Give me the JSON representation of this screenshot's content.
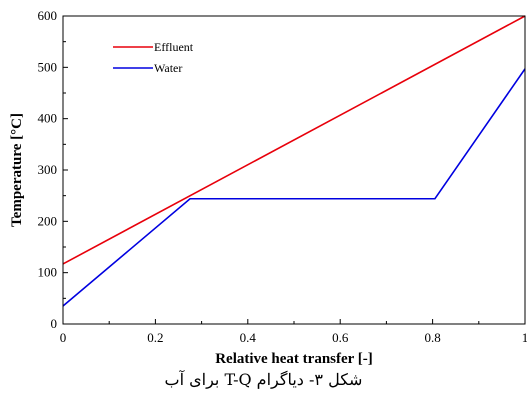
{
  "chart_data": {
    "type": "line",
    "xlabel": "Relative heat transfer [-]",
    "ylabel": "Temperature [°C]",
    "xlim": [
      0,
      1
    ],
    "ylim": [
      0,
      600
    ],
    "xticks": [
      0,
      0.2,
      0.4,
      0.6,
      0.8,
      1
    ],
    "xtick_labels": [
      "0",
      "0.2",
      "0.4",
      "0.6",
      "0.8",
      "1"
    ],
    "yticks": [
      0,
      100,
      200,
      300,
      400,
      500,
      600
    ],
    "ytick_labels": [
      "0",
      "100",
      "200",
      "300",
      "400",
      "500",
      "600"
    ],
    "grid": false,
    "legend_position": "top-left",
    "series": [
      {
        "name": "Effluent",
        "color": "#e8000b",
        "x": [
          0,
          1
        ],
        "y": [
          117,
          600
        ]
      },
      {
        "name": "Water",
        "color": "#0000e0",
        "x": [
          0,
          0.275,
          0.805,
          1
        ],
        "y": [
          35,
          244,
          244,
          497
        ]
      }
    ]
  },
  "caption": "شکل ۳- دیاگرام T-Q برای آب"
}
